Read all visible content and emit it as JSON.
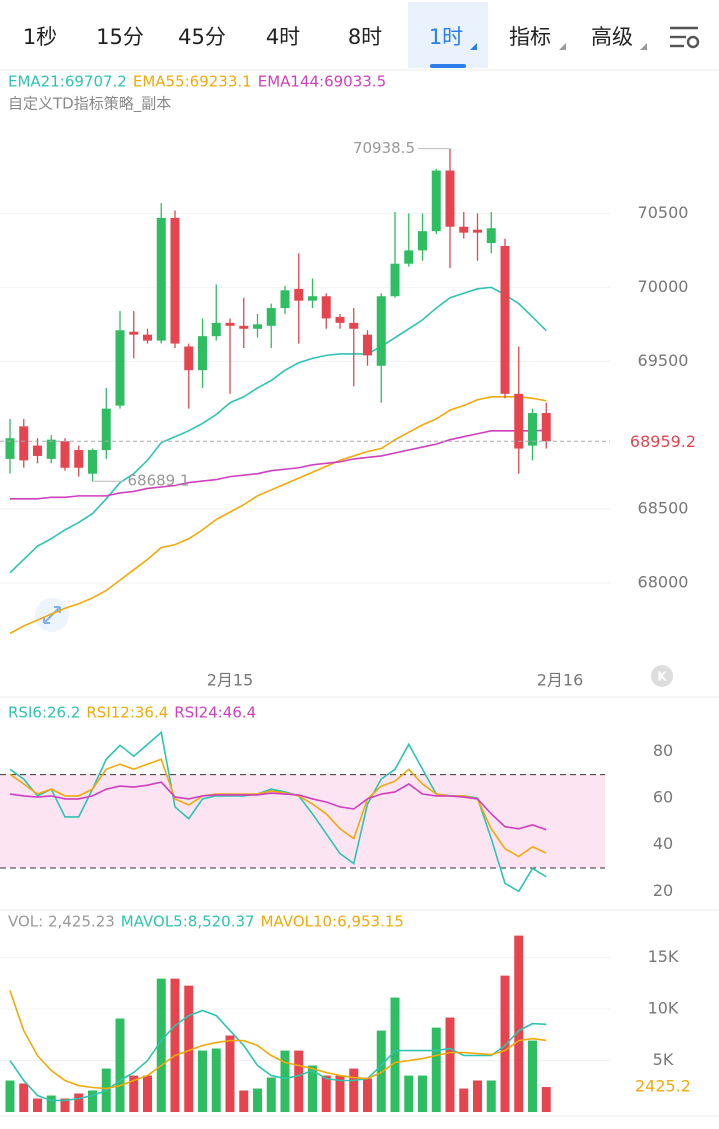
{
  "tabs": [
    "1秒",
    "15分",
    "45分",
    "4时",
    "8时",
    "1时",
    "指标",
    "高级"
  ],
  "badge": "K",
  "chart_data": [
    {
      "type": "candlestick",
      "title": "自定义TD指标策略_副本",
      "up_color": "#2ebd60",
      "down_color": "#e5454f",
      "open": [
        68840,
        69060,
        68930,
        68840,
        68960,
        68900,
        68740,
        68900,
        69200,
        69700,
        69680,
        69640,
        70470,
        69600,
        69440,
        69670,
        69760,
        69740,
        69720,
        69740,
        69860,
        69990,
        69910,
        69940,
        69800,
        69760,
        69680,
        69470,
        69940,
        70160,
        70250,
        70380,
        70790,
        70410,
        70390,
        70300,
        70280,
        69280,
        68930,
        69150
      ],
      "high": [
        69110,
        69110,
        68980,
        69000,
        68980,
        68930,
        68910,
        69320,
        69840,
        69840,
        69720,
        70570,
        70520,
        69620,
        69790,
        70020,
        69790,
        69930,
        69820,
        69890,
        70010,
        70230,
        70060,
        69960,
        69820,
        69860,
        69710,
        69960,
        70510,
        70500,
        70500,
        70800,
        70938.5,
        70510,
        70500,
        70510,
        70330,
        69600,
        69180,
        69220
      ],
      "low": [
        68740,
        68780,
        68810,
        68810,
        68760,
        68720,
        68689.1,
        68840,
        69180,
        69520,
        69620,
        69620,
        69590,
        69180,
        69320,
        69640,
        69280,
        69590,
        69660,
        69590,
        69820,
        69620,
        69860,
        69720,
        69720,
        69330,
        69470,
        69220,
        69930,
        70140,
        70180,
        70360,
        70130,
        70330,
        70180,
        70230,
        69250,
        68740,
        68830,
        68910
      ],
      "close": [
        68980,
        68830,
        68860,
        68970,
        68780,
        68780,
        68900,
        69180,
        69710,
        69680,
        69640,
        70470,
        69620,
        69440,
        69670,
        69760,
        69740,
        69720,
        69750,
        69860,
        69980,
        69910,
        69940,
        69790,
        69760,
        69720,
        69540,
        69940,
        70160,
        70250,
        70380,
        70790,
        70410,
        70370,
        70370,
        70400,
        69280,
        68910,
        69150,
        68959.2
      ],
      "series": [
        {
          "name": "EMA21:69707.2",
          "color": "#2ec4b0",
          "values": [
            68070,
            68160,
            68250,
            68300,
            68360,
            68410,
            68470,
            68570,
            68680,
            68740,
            68830,
            68950,
            68990,
            69030,
            69080,
            69140,
            69220,
            69260,
            69320,
            69370,
            69440,
            69490,
            69520,
            69540,
            69550,
            69550,
            69550,
            69600,
            69660,
            69720,
            69780,
            69860,
            69930,
            69960,
            69990,
            70000,
            69950,
            69890,
            69800,
            69707.2
          ]
        },
        {
          "name": "EMA55:69233.1",
          "color": "#f0a90b",
          "values": [
            67660,
            67710,
            67750,
            67790,
            67830,
            67860,
            67900,
            67950,
            68020,
            68090,
            68160,
            68240,
            68260,
            68300,
            68360,
            68430,
            68480,
            68530,
            68590,
            68630,
            68670,
            68710,
            68750,
            68790,
            68830,
            68860,
            68890,
            68910,
            68970,
            69020,
            69070,
            69110,
            69170,
            69200,
            69240,
            69260,
            69260,
            69260,
            69250,
            69233.1
          ]
        },
        {
          "name": "EMA144:69033.5",
          "color": "#cf3fbf",
          "values": [
            68570,
            68570,
            68570,
            68580,
            68580,
            68590,
            68590,
            68590,
            68610,
            68620,
            68640,
            68650,
            68660,
            68680,
            68690,
            68700,
            68720,
            68730,
            68740,
            68760,
            68770,
            68780,
            68800,
            68810,
            68820,
            68840,
            68850,
            68860,
            68880,
            68900,
            68920,
            68940,
            68970,
            68990,
            69010,
            69030,
            69030,
            69030,
            69030,
            69033.5
          ]
        }
      ],
      "max_label": 70938.5,
      "min_label": 68689.1,
      "last_price": 68959.2,
      "ylim": [
        67480,
        71470
      ],
      "yticks": [
        68000,
        68500,
        69500,
        70000,
        70500
      ],
      "grid": true,
      "xticks": [
        {
          "value": 16,
          "label": "2月15"
        },
        {
          "value": 40,
          "label": "2月16"
        }
      ]
    },
    {
      "type": "line",
      "series": [
        {
          "name": "RSI6:26.2",
          "color": "#2ec4b0",
          "values": [
            72.3,
            68.1,
            60.9,
            63.8,
            51.9,
            51.9,
            63.8,
            76.6,
            82.6,
            77.9,
            83.0,
            88.1,
            56.2,
            51.1,
            59.6,
            60.9,
            60.9,
            60.9,
            61.7,
            63.8,
            62.6,
            60.9,
            53.2,
            44.7,
            36.2,
            31.9,
            57.4,
            68.1,
            72.3,
            83.0,
            72.3,
            61.7,
            60.9,
            60.9,
            60.0,
            42.6,
            23.4,
            20.0,
            29.8,
            26.2
          ]
        },
        {
          "name": "RSI12:36.4",
          "color": "#f0a90b",
          "values": [
            70.2,
            66.0,
            61.7,
            63.8,
            60.9,
            60.9,
            63.8,
            72.3,
            74.5,
            72.3,
            74.5,
            76.6,
            59.6,
            57.0,
            60.9,
            61.7,
            61.7,
            61.7,
            61.7,
            63.0,
            62.1,
            60.9,
            57.4,
            53.2,
            46.8,
            42.6,
            59.6,
            65.1,
            67.2,
            72.3,
            66.0,
            61.7,
            60.9,
            60.9,
            59.6,
            46.8,
            38.3,
            34.9,
            39.1,
            36.4
          ]
        },
        {
          "name": "RSI24:46.4",
          "color": "#cf3fbf",
          "values": [
            61.7,
            60.9,
            60.4,
            60.9,
            59.6,
            59.6,
            60.9,
            63.8,
            65.1,
            64.7,
            65.5,
            66.8,
            60.4,
            59.6,
            60.9,
            61.3,
            61.3,
            61.3,
            61.3,
            62.1,
            61.7,
            61.3,
            59.6,
            58.3,
            56.2,
            55.3,
            59.6,
            61.7,
            62.6,
            66.0,
            61.7,
            60.9,
            60.9,
            60.4,
            59.6,
            53.2,
            47.7,
            46.8,
            48.5,
            46.4
          ]
        }
      ],
      "bands": [
        30,
        70
      ],
      "band_color": "#fde4f2",
      "ylim": [
        12,
        102
      ],
      "yticks": [
        20,
        40,
        60,
        80
      ]
    },
    {
      "type": "volume",
      "up_color": "#2ebd60",
      "down_color": "#e5454f",
      "series": [
        {
          "name": "VOL: 2,425.23",
          "color": "#999999",
          "values": [
            3060,
            2770,
            1310,
            1600,
            1310,
            1800,
            2090,
            4220,
            9080,
            3540,
            3540,
            12960,
            12960,
            12280,
            5970,
            6170,
            7430,
            2090,
            2280,
            3350,
            5970,
            5970,
            4520,
            3540,
            3540,
            4220,
            3250,
            7910,
            11120,
            3540,
            3540,
            8200,
            9180,
            2280,
            3060,
            3060,
            13250,
            17140,
            6940,
            2425.23
          ]
        },
        {
          "name": "MAVOL5:8,520.37",
          "color": "#2ec4b0",
          "values": [
            5000,
            3060,
            1600,
            1120,
            1120,
            1310,
            1600,
            2090,
            3060,
            3840,
            5000,
            6940,
            8400,
            9370,
            9860,
            9370,
            7910,
            6460,
            4520,
            3540,
            3250,
            3540,
            4030,
            3250,
            3060,
            3060,
            3250,
            4520,
            5970,
            5970,
            5970,
            5970,
            6170,
            5490,
            5490,
            5490,
            6460,
            7910,
            8590,
            8520.37
          ]
        },
        {
          "name": "MAVOL10:6,953.15",
          "color": "#f0a90b",
          "values": [
            11800,
            7910,
            5490,
            4030,
            3060,
            2570,
            2380,
            2280,
            2570,
            3060,
            3540,
            4520,
            5490,
            5970,
            6460,
            6750,
            6940,
            6940,
            6460,
            5490,
            4810,
            4520,
            4220,
            3840,
            3540,
            3350,
            3250,
            3840,
            4810,
            5000,
            5190,
            5490,
            5780,
            5780,
            5680,
            5580,
            5970,
            6940,
            7140,
            6953.15
          ]
        }
      ],
      "current_label": {
        "value": 2425.23,
        "label": "2425.2"
      },
      "ylim": [
        0,
        17200
      ],
      "yticks": [
        {
          "value": 5000,
          "label": "5K"
        },
        {
          "value": 10000,
          "label": "10K"
        },
        {
          "value": 15000,
          "label": "15K"
        }
      ]
    }
  ]
}
